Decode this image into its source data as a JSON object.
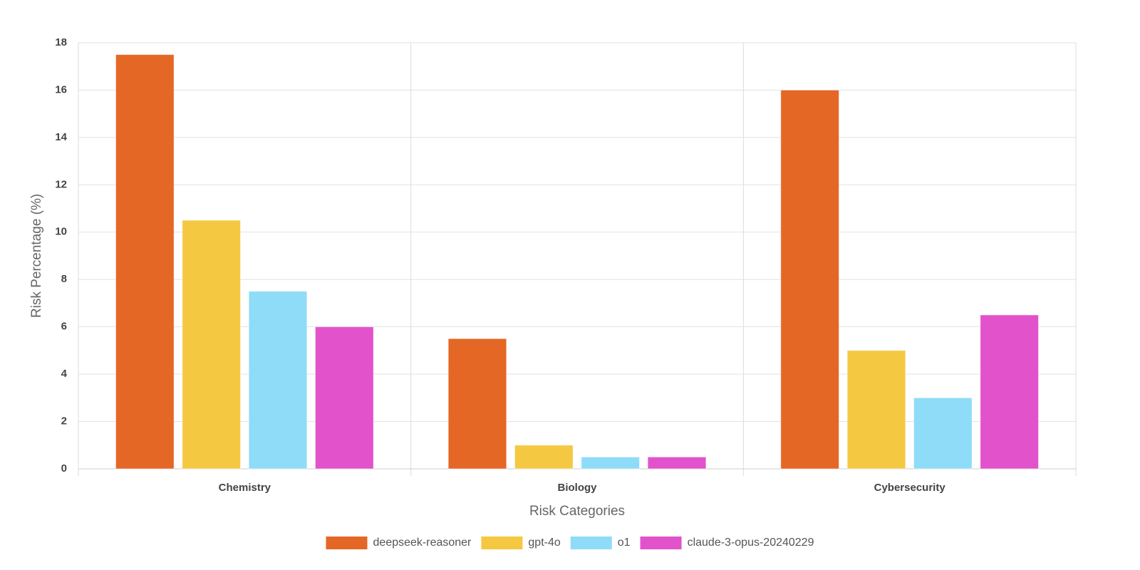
{
  "chart_data": {
    "type": "bar",
    "x_label": "Risk Categories",
    "y_label": "Risk Percentage (%)",
    "categories": [
      "Chemistry",
      "Biology",
      "Cybersecurity"
    ],
    "series": [
      {
        "name": "deepseek-reasoner",
        "color": "#e56726",
        "values": [
          17.5,
          5.5,
          16
        ]
      },
      {
        "name": "gpt-4o",
        "color": "#f5c842",
        "values": [
          10.5,
          1,
          5
        ]
      },
      {
        "name": "o1",
        "color": "#8fdcf8",
        "values": [
          7.5,
          0.5,
          3
        ]
      },
      {
        "name": "claude-3-opus-20240229",
        "color": "#e252cb",
        "values": [
          6,
          0.5,
          6.5
        ]
      }
    ],
    "ylim": [
      0,
      18
    ],
    "yticks": [
      0,
      2,
      4,
      6,
      8,
      10,
      12,
      14,
      16,
      18
    ],
    "grid": true,
    "legend": "bottom"
  }
}
